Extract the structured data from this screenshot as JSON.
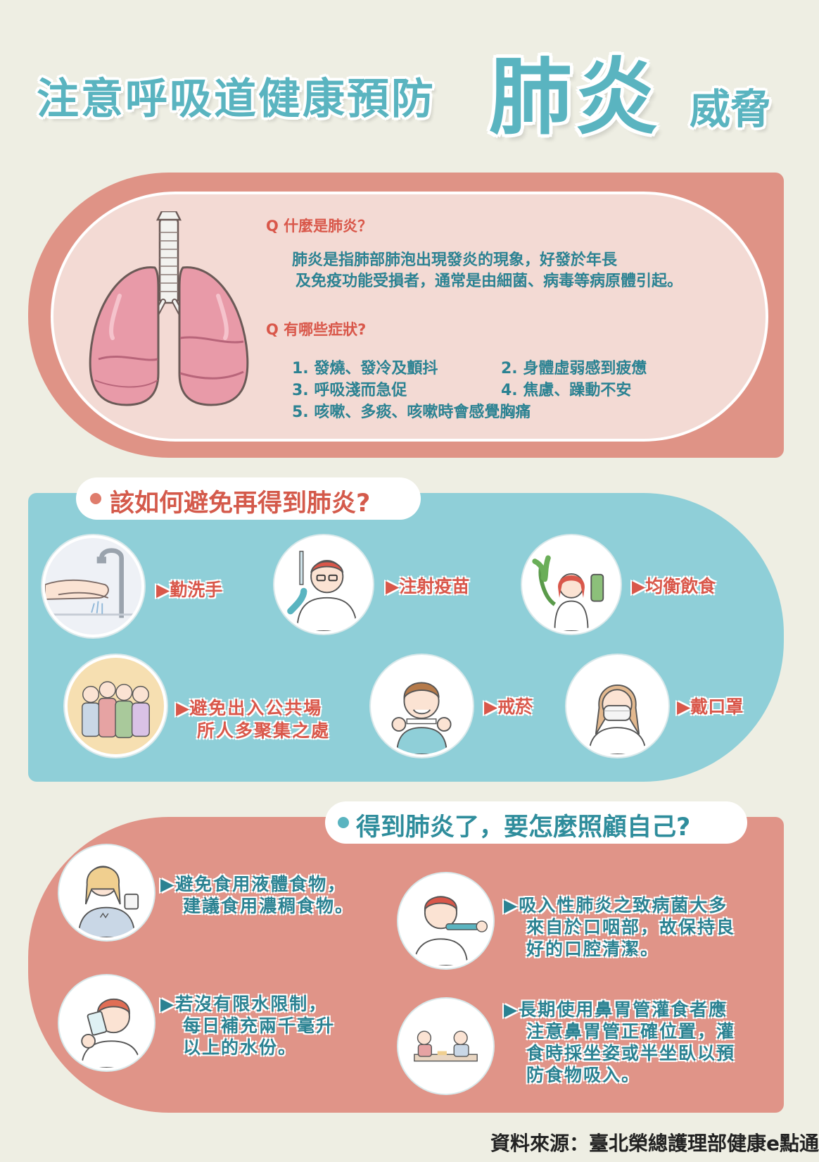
{
  "title": {
    "main": "注意呼吸道健康預防",
    "highlight": "肺炎",
    "end": "威脅"
  },
  "section1": {
    "q1": "Q 什麼是肺炎？",
    "a1_line1": "肺炎是指肺部肺泡出現發炎的現象，好發於年長",
    "a1_line2": "及免疫功能受損者，通常是由細菌、病毒等病原體引起。",
    "q2": "Q 有哪些症狀?",
    "symptoms": [
      "1. 發燒、發冷及顫抖",
      "2. 身體虛弱感到疲憊",
      "3. 呼吸淺而急促",
      "4. 焦慮、躁動不安",
      "5. 咳嗽、多痰、咳嗽時會感覺胸痛"
    ]
  },
  "section2": {
    "heading": "該如何避免再得到肺炎?",
    "arrow": "▶",
    "tips": [
      {
        "line1": "勤洗手",
        "line2": "",
        "icon": "hand-washing-icon"
      },
      {
        "line1": "注射疫苗",
        "line2": "",
        "icon": "doctor-vaccine-icon"
      },
      {
        "line1": "均衡飲食",
        "line2": "",
        "icon": "healthy-food-icon"
      },
      {
        "line1": "避免出入公共場",
        "line2": "所人多聚集之處",
        "icon": "crowd-icon"
      },
      {
        "line1": "戒菸",
        "line2": "",
        "icon": "no-smoking-icon"
      },
      {
        "line1": "戴口罩",
        "line2": "",
        "icon": "face-mask-icon"
      }
    ]
  },
  "section3": {
    "heading": "得到肺炎了，要怎麼照顧自己?",
    "arrow": "▶",
    "items": [
      {
        "lines": [
          "避免食用液體食物，",
          "建議食用濃稠食物。"
        ],
        "icon": "thick-food-icon"
      },
      {
        "lines": [
          "吸入性肺炎之致病菌大多",
          "來自於口咽部，故保持良",
          "好的口腔清潔。"
        ],
        "icon": "tooth-brushing-icon"
      },
      {
        "lines": [
          "若沒有限水限制，",
          "每日補充兩千毫升",
          "以上的水份。"
        ],
        "icon": "drinking-water-icon"
      },
      {
        "lines": [
          "長期使用鼻胃管灌食者應",
          "注意鼻胃管正確位置，灌",
          "食時採坐姿或半坐臥以預",
          "防食物吸入。"
        ],
        "icon": "tube-feeding-icon"
      }
    ]
  },
  "source": "資料來源：臺北榮總護理部健康e點通",
  "colors": {
    "teal": "#5ab4c0",
    "coral": "#df9386",
    "pink_panel": "#f3dad4",
    "light_teal_panel": "#8fcfd8",
    "red_text": "#d9574a",
    "teal_text": "#2b8292",
    "background": "#eeeee3"
  }
}
